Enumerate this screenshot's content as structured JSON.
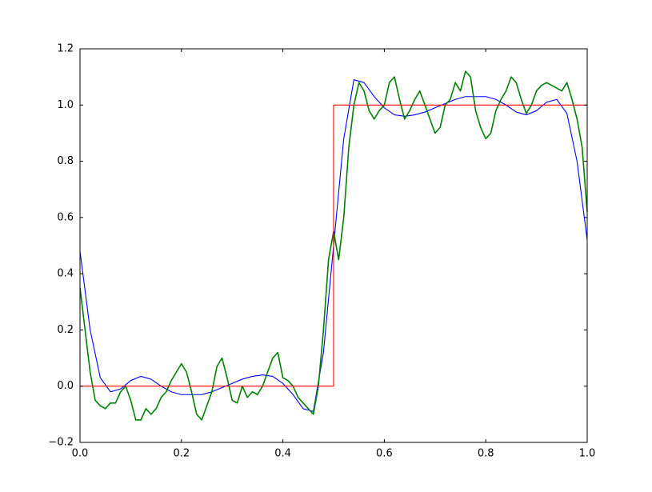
{
  "chart_data": {
    "type": "line",
    "xlim": [
      0,
      1
    ],
    "ylim": [
      -0.2,
      1.2
    ],
    "xticks": [
      {
        "value": 0,
        "label": "0.0"
      },
      {
        "value": 0.2,
        "label": "0.2"
      },
      {
        "value": 0.4,
        "label": "0.4"
      },
      {
        "value": 0.6,
        "label": "0.6"
      },
      {
        "value": 0.8,
        "label": "0.8"
      },
      {
        "value": 1,
        "label": "1.0"
      }
    ],
    "yticks": [
      {
        "value": -0.2,
        "label": "−0.2"
      },
      {
        "value": 0,
        "label": "0.0"
      },
      {
        "value": 0.2,
        "label": "0.2"
      },
      {
        "value": 0.4,
        "label": "0.4"
      },
      {
        "value": 0.6,
        "label": "0.6"
      },
      {
        "value": 0.8,
        "label": "0.8"
      },
      {
        "value": 1,
        "label": "1.0"
      },
      {
        "value": 1.2,
        "label": "1.2"
      }
    ],
    "grid": false,
    "series": [
      {
        "color": "#0000ff",
        "x": [
          0,
          0.02,
          0.04,
          0.06,
          0.08,
          0.1,
          0.12,
          0.14,
          0.16,
          0.18,
          0.2,
          0.22,
          0.24,
          0.26,
          0.28,
          0.3,
          0.32,
          0.34,
          0.36,
          0.38,
          0.4,
          0.42,
          0.44,
          0.46,
          0.48,
          0.5,
          0.52,
          0.54,
          0.56,
          0.58,
          0.6,
          0.62,
          0.64,
          0.66,
          0.68,
          0.7,
          0.72,
          0.74,
          0.76,
          0.78,
          0.8,
          0.82,
          0.84,
          0.86,
          0.88,
          0.9,
          0.92,
          0.94,
          0.96,
          0.98,
          1
        ],
        "values": [
          0.48,
          0.2,
          0.03,
          -0.02,
          -0.01,
          0.02,
          0.035,
          0.025,
          0,
          -0.02,
          -0.03,
          -0.03,
          -0.03,
          -0.02,
          -0.005,
          0.01,
          0.025,
          0.035,
          0.04,
          0.035,
          0.01,
          -0.03,
          -0.08,
          -0.09,
          0.12,
          0.5,
          0.88,
          1.09,
          1.08,
          1.03,
          0.99,
          0.965,
          0.96,
          0.965,
          0.975,
          0.99,
          1.005,
          1.02,
          1.03,
          1.03,
          1.03,
          1.02,
          1,
          0.975,
          0.965,
          0.98,
          1.01,
          1.02,
          0.97,
          0.8,
          0.52
        ]
      },
      {
        "color": "#008000",
        "x": [
          0,
          0.01,
          0.02,
          0.03,
          0.04,
          0.05,
          0.06,
          0.07,
          0.08,
          0.09,
          0.1,
          0.11,
          0.12,
          0.13,
          0.14,
          0.15,
          0.16,
          0.17,
          0.18,
          0.19,
          0.2,
          0.21,
          0.22,
          0.23,
          0.24,
          0.25,
          0.26,
          0.27,
          0.28,
          0.29,
          0.3,
          0.31,
          0.32,
          0.33,
          0.34,
          0.35,
          0.36,
          0.37,
          0.38,
          0.39,
          0.4,
          0.41,
          0.42,
          0.43,
          0.44,
          0.45,
          0.46,
          0.47,
          0.48,
          0.49,
          0.5,
          0.51,
          0.52,
          0.53,
          0.54,
          0.55,
          0.56,
          0.57,
          0.58,
          0.59,
          0.6,
          0.61,
          0.62,
          0.63,
          0.64,
          0.65,
          0.66,
          0.67,
          0.68,
          0.69,
          0.7,
          0.71,
          0.72,
          0.73,
          0.74,
          0.75,
          0.76,
          0.77,
          0.78,
          0.79,
          0.8,
          0.81,
          0.82,
          0.83,
          0.84,
          0.85,
          0.86,
          0.87,
          0.88,
          0.89,
          0.9,
          0.91,
          0.92,
          0.93,
          0.94,
          0.95,
          0.96,
          0.97,
          0.98,
          0.99,
          1
        ],
        "values": [
          0.35,
          0.2,
          0.05,
          -0.05,
          -0.07,
          -0.08,
          -0.06,
          -0.06,
          -0.02,
          0,
          -0.05,
          -0.12,
          -0.12,
          -0.08,
          -0.1,
          -0.08,
          -0.04,
          -0.02,
          0.02,
          0.05,
          0.08,
          0.05,
          -0.02,
          -0.1,
          -0.12,
          -0.07,
          -0.02,
          0.07,
          0.1,
          0.03,
          -0.05,
          -0.06,
          0,
          -0.04,
          -0.02,
          -0.03,
          0,
          0.05,
          0.1,
          0.12,
          0.03,
          0.02,
          0,
          -0.04,
          -0.06,
          -0.08,
          -0.1,
          0,
          0.2,
          0.45,
          0.55,
          0.45,
          0.6,
          0.85,
          1,
          1.08,
          1.05,
          0.98,
          0.95,
          0.98,
          1,
          1.08,
          1.1,
          1.02,
          0.95,
          0.98,
          1.02,
          1.05,
          1,
          0.95,
          0.9,
          0.92,
          1,
          1.02,
          1.08,
          1.05,
          1.12,
          1.1,
          0.98,
          0.92,
          0.88,
          0.9,
          0.98,
          1.02,
          1.05,
          1.1,
          1.08,
          1.02,
          0.97,
          1,
          1.05,
          1.07,
          1.08,
          1.07,
          1.06,
          1.05,
          1.08,
          1.02,
          0.95,
          0.85,
          0.62
        ]
      },
      {
        "color": "#ff0000",
        "x": [
          0,
          0.5,
          0.5,
          1
        ],
        "values": [
          0,
          0,
          1,
          1
        ]
      }
    ]
  }
}
